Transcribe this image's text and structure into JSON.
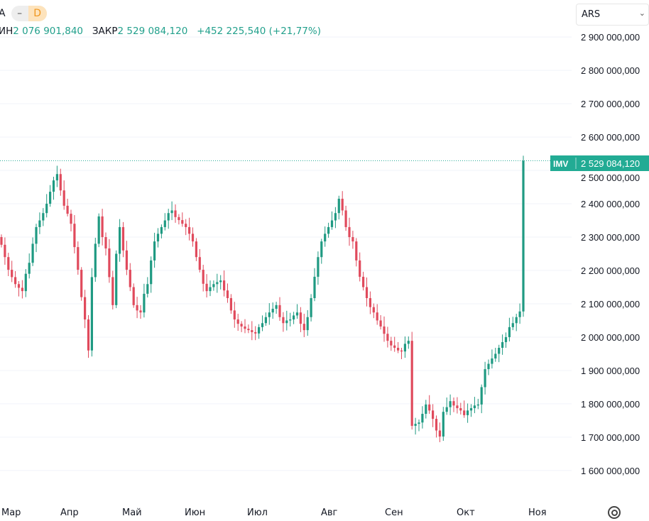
{
  "header": {
    "symbol_fragment": "А",
    "interval_dash": "–",
    "interval": "D",
    "low_label": "ИН",
    "low_value": "2 076 901,840",
    "close_label": "ЗАКР",
    "close_value": "2 529 084,120",
    "change": "+452 225,540 (+21,77%)"
  },
  "currency": {
    "selected": "ARS"
  },
  "price_label": {
    "ticker": "IMV",
    "value": "2 529 084,120"
  },
  "colors": {
    "up": "#1f9a82",
    "down": "#e04a5c",
    "label_bg": "#22ab94"
  },
  "chart_data": {
    "type": "candlestick",
    "title": "IMV",
    "unit": "ARS (millions in closes)",
    "ylim": [
      1521,
      3011
    ],
    "yticks": [
      1600,
      1700,
      1800,
      1900,
      2000,
      2100,
      2200,
      2300,
      2400,
      2500,
      2600,
      2700,
      2800,
      2900
    ],
    "ytick_labels": [
      "1 600 000,000",
      "1 700 000,000",
      "1 800 000,000",
      "1 900 000,000",
      "2 000 000,000",
      "2 100 000,000",
      "2 200 000,000",
      "2 300 000,000",
      "2 400 000,000",
      "2 500 000,000",
      "2 600 000,000",
      "2 700 000,000",
      "2 800 000,000",
      "2 900 000,000"
    ],
    "xtick_labels": [
      "Мар",
      "Апр",
      "Май",
      "Июн",
      "Июл",
      "Авг",
      "Сен",
      "Окт",
      "Ноя"
    ],
    "first_open": 2300,
    "closes": [
      2277,
      2240,
      2202,
      2180,
      2159,
      2148,
      2138,
      2190,
      2223,
      2280,
      2330,
      2350,
      2372,
      2400,
      2436,
      2470,
      2489,
      2440,
      2394,
      2370,
      2340,
      2270,
      2202,
      2120,
      2053,
      1960,
      2180,
      2280,
      2362,
      2300,
      2266,
      2180,
      2096,
      2250,
      2330,
      2260,
      2202,
      2150,
      2096,
      2080,
      2074,
      2130,
      2159,
      2230,
      2287,
      2310,
      2330,
      2350,
      2372,
      2380,
      2360,
      2351,
      2340,
      2330,
      2310,
      2287,
      2240,
      2202,
      2160,
      2138,
      2150,
      2159,
      2165,
      2170,
      2140,
      2117,
      2080,
      2053,
      2040,
      2032,
      2025,
      2021,
      2015,
      2011,
      2030,
      2042,
      2060,
      2074,
      2085,
      2096,
      2060,
      2042,
      2050,
      2053,
      2065,
      2074,
      2040,
      2021,
      2060,
      2117,
      2181,
      2240,
      2287,
      2310,
      2330,
      2350,
      2372,
      2415,
      2380,
      2330,
      2300,
      2287,
      2230,
      2181,
      2150,
      2117,
      2090,
      2074,
      2050,
      2032,
      2010,
      1989,
      1975,
      1968,
      1960,
      1957,
      1980,
      1989,
      1734,
      1740,
      1744,
      1770,
      1798,
      1780,
      1755,
      1720,
      1702,
      1776,
      1790,
      1808,
      1795,
      1787,
      1780,
      1766,
      1780,
      1787,
      1795,
      1798,
      1850,
      1904,
      1920,
      1936,
      1950,
      1968,
      1985,
      2000,
      2030,
      2042,
      2060,
      2077,
      2529
    ],
    "last_price": 2529.08412
  }
}
